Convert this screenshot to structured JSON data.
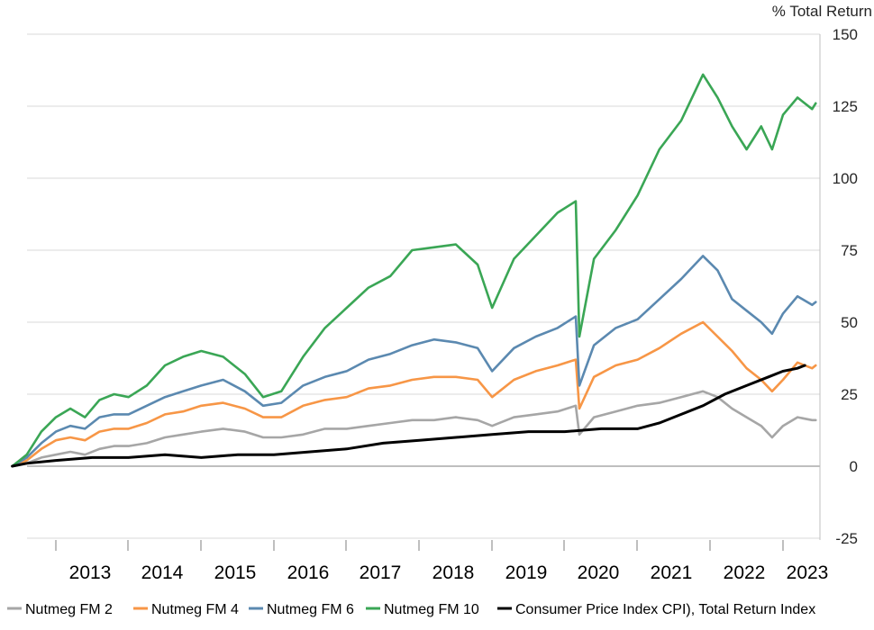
{
  "chart_data": {
    "type": "line",
    "ylabel": "% Total Return",
    "ylim": [
      -30,
      150
    ],
    "yticks": [
      150,
      125,
      100,
      75,
      50,
      25,
      0,
      -25
    ],
    "xlim": [
      2012.4,
      2023.55
    ],
    "xticks": [
      "2013",
      "2014",
      "2015",
      "2016",
      "2017",
      "2018",
      "2019",
      "2020",
      "2021",
      "2022",
      "2023"
    ],
    "grid": true,
    "legend_position": "bottom",
    "series": [
      {
        "name": "Nutmeg FM 2",
        "color": "#A6A6A6",
        "points": [
          [
            2012.4,
            0
          ],
          [
            2012.6,
            1
          ],
          [
            2012.8,
            3
          ],
          [
            2013.0,
            4
          ],
          [
            2013.2,
            5
          ],
          [
            2013.4,
            4
          ],
          [
            2013.6,
            6
          ],
          [
            2013.8,
            7
          ],
          [
            2014.0,
            7
          ],
          [
            2014.25,
            8
          ],
          [
            2014.5,
            10
          ],
          [
            2014.75,
            11
          ],
          [
            2015.0,
            12
          ],
          [
            2015.3,
            13
          ],
          [
            2015.6,
            12
          ],
          [
            2015.85,
            10
          ],
          [
            2016.1,
            10
          ],
          [
            2016.4,
            11
          ],
          [
            2016.7,
            13
          ],
          [
            2017.0,
            13
          ],
          [
            2017.3,
            14
          ],
          [
            2017.6,
            15
          ],
          [
            2017.9,
            16
          ],
          [
            2018.2,
            16
          ],
          [
            2018.5,
            17
          ],
          [
            2018.8,
            16
          ],
          [
            2019.0,
            14
          ],
          [
            2019.3,
            17
          ],
          [
            2019.6,
            18
          ],
          [
            2019.9,
            19
          ],
          [
            2020.15,
            21
          ],
          [
            2020.2,
            11
          ],
          [
            2020.4,
            17
          ],
          [
            2020.7,
            19
          ],
          [
            2021.0,
            21
          ],
          [
            2021.3,
            22
          ],
          [
            2021.6,
            24
          ],
          [
            2021.9,
            26
          ],
          [
            2022.1,
            24
          ],
          [
            2022.3,
            20
          ],
          [
            2022.5,
            17
          ],
          [
            2022.7,
            14
          ],
          [
            2022.85,
            10
          ],
          [
            2023.0,
            14
          ],
          [
            2023.2,
            17
          ],
          [
            2023.4,
            16
          ],
          [
            2023.45,
            16
          ]
        ]
      },
      {
        "name": "Nutmeg FM 4",
        "color": "#F79646",
        "points": [
          [
            2012.4,
            0
          ],
          [
            2012.6,
            2
          ],
          [
            2012.8,
            6
          ],
          [
            2013.0,
            9
          ],
          [
            2013.2,
            10
          ],
          [
            2013.4,
            9
          ],
          [
            2013.6,
            12
          ],
          [
            2013.8,
            13
          ],
          [
            2014.0,
            13
          ],
          [
            2014.25,
            15
          ],
          [
            2014.5,
            18
          ],
          [
            2014.75,
            19
          ],
          [
            2015.0,
            21
          ],
          [
            2015.3,
            22
          ],
          [
            2015.6,
            20
          ],
          [
            2015.85,
            17
          ],
          [
            2016.1,
            17
          ],
          [
            2016.4,
            21
          ],
          [
            2016.7,
            23
          ],
          [
            2017.0,
            24
          ],
          [
            2017.3,
            27
          ],
          [
            2017.6,
            28
          ],
          [
            2017.9,
            30
          ],
          [
            2018.2,
            31
          ],
          [
            2018.5,
            31
          ],
          [
            2018.8,
            30
          ],
          [
            2019.0,
            24
          ],
          [
            2019.3,
            30
          ],
          [
            2019.6,
            33
          ],
          [
            2019.9,
            35
          ],
          [
            2020.15,
            37
          ],
          [
            2020.2,
            20
          ],
          [
            2020.4,
            31
          ],
          [
            2020.7,
            35
          ],
          [
            2021.0,
            37
          ],
          [
            2021.3,
            41
          ],
          [
            2021.6,
            46
          ],
          [
            2021.9,
            50
          ],
          [
            2022.1,
            45
          ],
          [
            2022.3,
            40
          ],
          [
            2022.5,
            34
          ],
          [
            2022.7,
            30
          ],
          [
            2022.85,
            26
          ],
          [
            2023.0,
            30
          ],
          [
            2023.2,
            36
          ],
          [
            2023.4,
            34
          ],
          [
            2023.45,
            35
          ]
        ]
      },
      {
        "name": "Nutmeg FM 6",
        "color": "#5B89B0",
        "points": [
          [
            2012.4,
            0
          ],
          [
            2012.6,
            3
          ],
          [
            2012.8,
            8
          ],
          [
            2013.0,
            12
          ],
          [
            2013.2,
            14
          ],
          [
            2013.4,
            13
          ],
          [
            2013.6,
            17
          ],
          [
            2013.8,
            18
          ],
          [
            2014.0,
            18
          ],
          [
            2014.25,
            21
          ],
          [
            2014.5,
            24
          ],
          [
            2014.75,
            26
          ],
          [
            2015.0,
            28
          ],
          [
            2015.3,
            30
          ],
          [
            2015.6,
            26
          ],
          [
            2015.85,
            21
          ],
          [
            2016.1,
            22
          ],
          [
            2016.4,
            28
          ],
          [
            2016.7,
            31
          ],
          [
            2017.0,
            33
          ],
          [
            2017.3,
            37
          ],
          [
            2017.6,
            39
          ],
          [
            2017.9,
            42
          ],
          [
            2018.2,
            44
          ],
          [
            2018.5,
            43
          ],
          [
            2018.8,
            41
          ],
          [
            2019.0,
            33
          ],
          [
            2019.3,
            41
          ],
          [
            2019.6,
            45
          ],
          [
            2019.9,
            48
          ],
          [
            2020.15,
            52
          ],
          [
            2020.2,
            28
          ],
          [
            2020.4,
            42
          ],
          [
            2020.7,
            48
          ],
          [
            2021.0,
            51
          ],
          [
            2021.3,
            58
          ],
          [
            2021.6,
            65
          ],
          [
            2021.9,
            73
          ],
          [
            2022.1,
            68
          ],
          [
            2022.3,
            58
          ],
          [
            2022.5,
            54
          ],
          [
            2022.7,
            50
          ],
          [
            2022.85,
            46
          ],
          [
            2023.0,
            53
          ],
          [
            2023.2,
            59
          ],
          [
            2023.4,
            56
          ],
          [
            2023.45,
            57
          ]
        ]
      },
      {
        "name": "Nutmeg FM 10",
        "color": "#3AA655",
        "points": [
          [
            2012.4,
            0
          ],
          [
            2012.6,
            4
          ],
          [
            2012.8,
            12
          ],
          [
            2013.0,
            17
          ],
          [
            2013.2,
            20
          ],
          [
            2013.4,
            17
          ],
          [
            2013.6,
            23
          ],
          [
            2013.8,
            25
          ],
          [
            2014.0,
            24
          ],
          [
            2014.25,
            28
          ],
          [
            2014.5,
            35
          ],
          [
            2014.75,
            38
          ],
          [
            2015.0,
            40
          ],
          [
            2015.3,
            38
          ],
          [
            2015.6,
            32
          ],
          [
            2015.85,
            24
          ],
          [
            2016.1,
            26
          ],
          [
            2016.4,
            38
          ],
          [
            2016.7,
            48
          ],
          [
            2017.0,
            55
          ],
          [
            2017.3,
            62
          ],
          [
            2017.6,
            66
          ],
          [
            2017.9,
            75
          ],
          [
            2018.2,
            76
          ],
          [
            2018.5,
            77
          ],
          [
            2018.8,
            70
          ],
          [
            2019.0,
            55
          ],
          [
            2019.3,
            72
          ],
          [
            2019.6,
            80
          ],
          [
            2019.9,
            88
          ],
          [
            2020.15,
            92
          ],
          [
            2020.2,
            45
          ],
          [
            2020.4,
            72
          ],
          [
            2020.7,
            82
          ],
          [
            2021.0,
            94
          ],
          [
            2021.3,
            110
          ],
          [
            2021.6,
            120
          ],
          [
            2021.9,
            136
          ],
          [
            2022.1,
            128
          ],
          [
            2022.3,
            118
          ],
          [
            2022.5,
            110
          ],
          [
            2022.7,
            118
          ],
          [
            2022.85,
            110
          ],
          [
            2023.0,
            122
          ],
          [
            2023.2,
            128
          ],
          [
            2023.4,
            124
          ],
          [
            2023.45,
            126
          ]
        ]
      },
      {
        "name": "Consumer Price Index CPI), Total Return Index",
        "color": "#000000",
        "points": [
          [
            2012.4,
            0
          ],
          [
            2012.6,
            1
          ],
          [
            2013.0,
            2
          ],
          [
            2013.5,
            3
          ],
          [
            2014.0,
            3
          ],
          [
            2014.5,
            4
          ],
          [
            2015.0,
            3
          ],
          [
            2015.5,
            4
          ],
          [
            2016.0,
            4
          ],
          [
            2016.5,
            5
          ],
          [
            2017.0,
            6
          ],
          [
            2017.5,
            8
          ],
          [
            2018.0,
            9
          ],
          [
            2018.5,
            10
          ],
          [
            2019.0,
            11
          ],
          [
            2019.5,
            12
          ],
          [
            2020.0,
            12
          ],
          [
            2020.5,
            13
          ],
          [
            2021.0,
            13
          ],
          [
            2021.3,
            15
          ],
          [
            2021.6,
            18
          ],
          [
            2021.9,
            21
          ],
          [
            2022.2,
            25
          ],
          [
            2022.5,
            28
          ],
          [
            2022.8,
            31
          ],
          [
            2023.0,
            33
          ],
          [
            2023.2,
            34
          ],
          [
            2023.3,
            35
          ]
        ]
      }
    ]
  }
}
